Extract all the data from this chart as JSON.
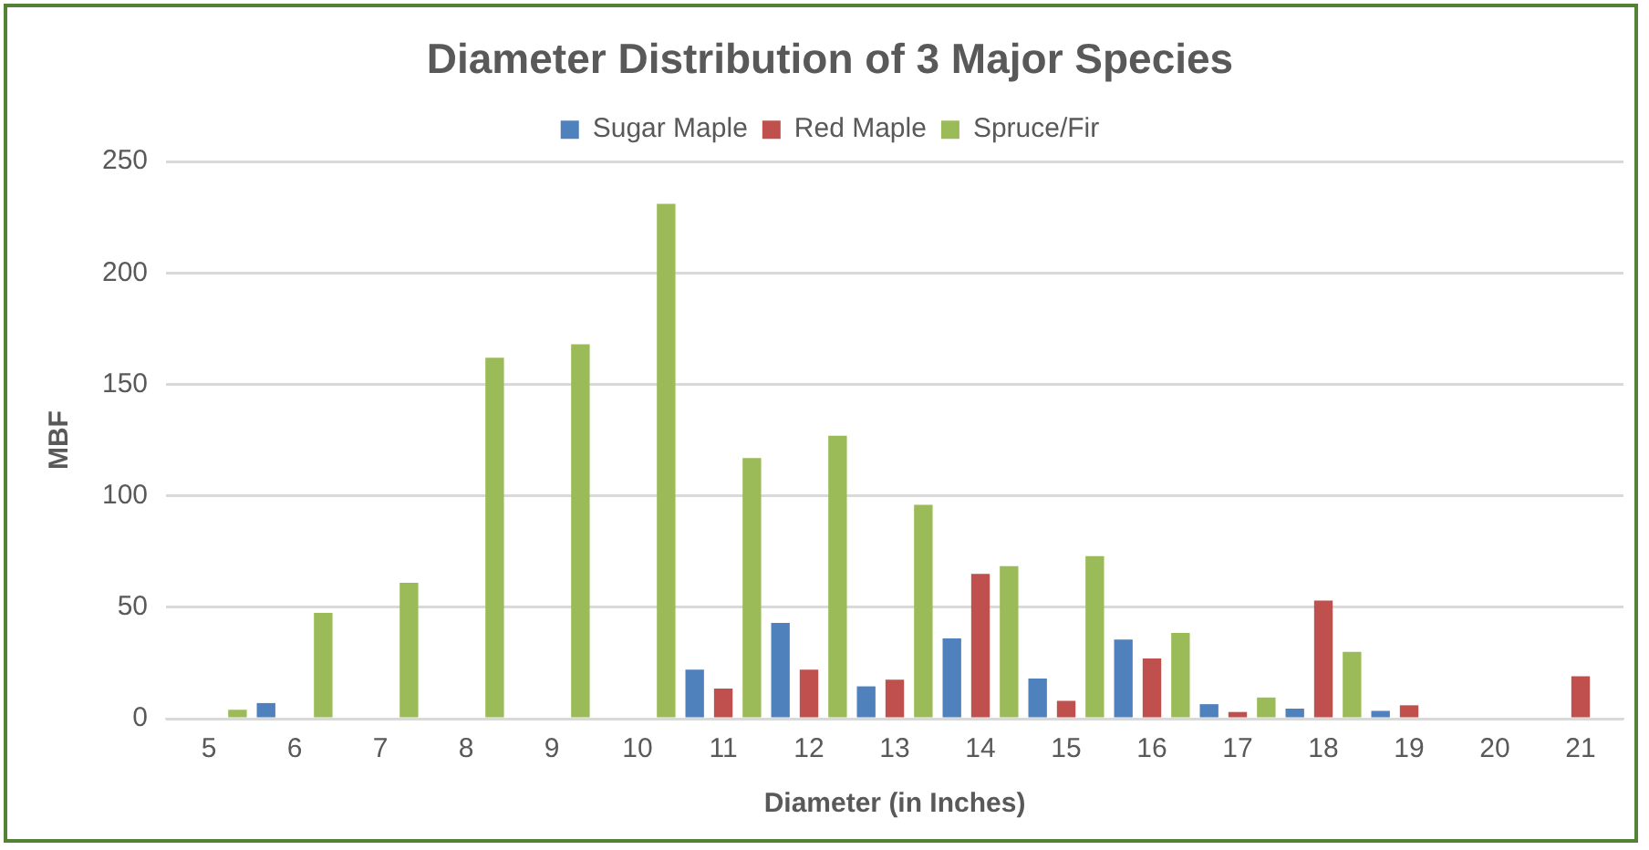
{
  "chart_data": {
    "type": "bar",
    "title": "Diameter Distribution of 3 Major Species",
    "xlabel": "Diameter (in Inches)",
    "ylabel": "MBF",
    "categories": [
      "5",
      "6",
      "7",
      "8",
      "9",
      "10",
      "11",
      "12",
      "13",
      "14",
      "15",
      "16",
      "17",
      "18",
      "19",
      "20",
      "21"
    ],
    "series": [
      {
        "name": "Sugar Maple",
        "color": "#4f81bd",
        "values": [
          null,
          7,
          null,
          null,
          null,
          null,
          22,
          43,
          14.5,
          36,
          18,
          35.5,
          6.5,
          4.5,
          3.5,
          null,
          null
        ]
      },
      {
        "name": "Red Maple",
        "color": "#c0504d",
        "values": [
          null,
          null,
          null,
          null,
          null,
          null,
          13.5,
          22,
          17.5,
          65,
          8,
          27,
          3,
          53,
          6,
          null,
          19
        ]
      },
      {
        "name": "Spruce/Fir",
        "color": "#9bbb59",
        "values": [
          4,
          47.5,
          61,
          162,
          168,
          231,
          117,
          127,
          96,
          68.5,
          73,
          38.5,
          9.5,
          30,
          null,
          null,
          null
        ]
      }
    ],
    "ylim": [
      0,
      250
    ],
    "yticks": [
      0,
      50,
      100,
      150,
      200,
      250
    ],
    "grid": "y",
    "legend": "top"
  }
}
